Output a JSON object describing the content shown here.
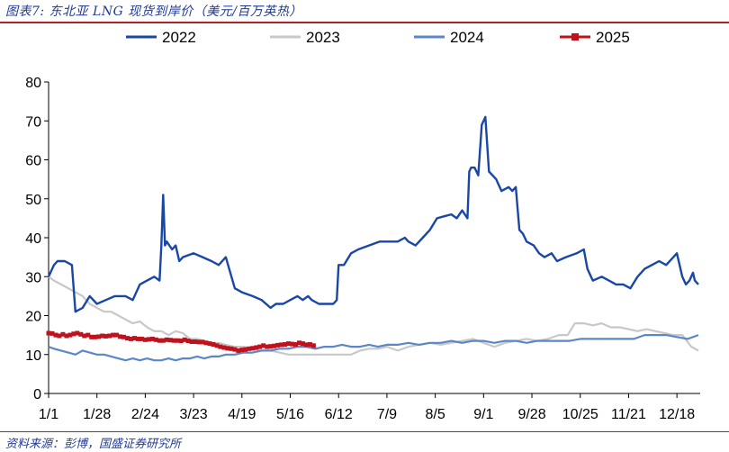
{
  "header": {
    "title": "图表7: 东北亚 LNG 现货到岸价（美元/百万英热）"
  },
  "footer": {
    "source": "资料来源：彭博，国盛证券研究所"
  },
  "colors": {
    "s2022": "#1a47a6",
    "s2023": "#c8c8c8",
    "s2024": "#5b86c8",
    "s2025": "#c0121c",
    "rule": "#b22222"
  },
  "chart_data": {
    "type": "line",
    "title": "东北亚 LNG 现货到岸价（美元/百万英热）",
    "xlabel": "",
    "ylabel": "",
    "ylim": [
      0,
      80
    ],
    "yticks": [
      0,
      10,
      20,
      30,
      40,
      50,
      60,
      70,
      80
    ],
    "xlim": [
      1,
      365
    ],
    "x_tick_labels": [
      "1/1",
      "1/28",
      "2/24",
      "3/23",
      "4/19",
      "5/16",
      "6/12",
      "7/9",
      "8/5",
      "9/1",
      "9/28",
      "10/25",
      "11/21",
      "12/18"
    ],
    "x_tick_days": [
      1,
      28,
      55,
      82,
      109,
      136,
      163,
      190,
      217,
      244,
      271,
      298,
      325,
      352
    ],
    "legend_position": "top",
    "series": [
      {
        "name": "2022",
        "x": [
          1,
          4,
          6,
          10,
          14,
          16,
          18,
          20,
          24,
          28,
          33,
          38,
          44,
          48,
          52,
          56,
          60,
          63,
          64,
          65,
          66,
          67,
          70,
          72,
          74,
          76,
          82,
          87,
          92,
          96,
          100,
          105,
          109,
          115,
          120,
          125,
          128,
          132,
          136,
          140,
          143,
          146,
          148,
          152,
          156,
          160,
          162,
          163,
          166,
          170,
          174,
          180,
          186,
          192,
          196,
          200,
          202,
          206,
          210,
          214,
          218,
          222,
          226,
          229,
          232,
          235,
          236,
          237,
          239,
          241,
          243,
          245,
          247,
          251,
          254,
          258,
          260,
          262,
          264,
          266,
          268,
          272,
          275,
          278,
          282,
          285,
          290,
          296,
          300,
          302,
          305,
          310,
          314,
          318,
          322,
          326,
          330,
          334,
          338,
          342,
          346,
          350,
          352,
          355,
          357,
          359,
          361,
          362,
          364
        ],
        "values": [
          30,
          33,
          34,
          34,
          33,
          21,
          21.5,
          22,
          25,
          23,
          24,
          25,
          25,
          24,
          28,
          29,
          30,
          29,
          38,
          51,
          38,
          39,
          37,
          38,
          34,
          35,
          36,
          35,
          34,
          33,
          35,
          27,
          26,
          25,
          24,
          22,
          23,
          23,
          24,
          25,
          24,
          25,
          24,
          23,
          23,
          23,
          24,
          33,
          33,
          36,
          37,
          38,
          39,
          39,
          39,
          40,
          39,
          38,
          40,
          42,
          45,
          45.5,
          46,
          45,
          47,
          45,
          57,
          58,
          58,
          56,
          69,
          71,
          57,
          55,
          52,
          53,
          52,
          53,
          42,
          41,
          39,
          38,
          36,
          35,
          36,
          34,
          35,
          36,
          37,
          32,
          29,
          30,
          29,
          28,
          28,
          27,
          30,
          32,
          33,
          34,
          33,
          35,
          36,
          30,
          28,
          29,
          31,
          29,
          28
        ],
        "color": "#1a47a6"
      },
      {
        "name": "2023",
        "x": [
          1,
          4,
          8,
          12,
          16,
          20,
          24,
          28,
          32,
          36,
          40,
          44,
          48,
          52,
          56,
          60,
          64,
          68,
          72,
          76,
          80,
          84,
          88,
          92,
          96,
          100,
          105,
          110,
          115,
          120,
          125,
          130,
          135,
          140,
          145,
          150,
          155,
          160,
          165,
          170,
          175,
          180,
          185,
          190,
          196,
          202,
          208,
          214,
          220,
          226,
          232,
          238,
          244,
          250,
          256,
          262,
          268,
          274,
          280,
          286,
          291,
          295,
          300,
          305,
          310,
          315,
          320,
          325,
          330,
          335,
          340,
          345,
          350,
          355,
          360,
          364
        ],
        "values": [
          30,
          29,
          28,
          27,
          26,
          25,
          23,
          22,
          21,
          21,
          20,
          19,
          18,
          18.5,
          17,
          16,
          16,
          15,
          16,
          15.5,
          14,
          14,
          13.5,
          13,
          13,
          12.5,
          12,
          12,
          11.5,
          11,
          11,
          10.5,
          10,
          10,
          10,
          10,
          10,
          10,
          10,
          10,
          11,
          11.5,
          11.5,
          12,
          11,
          12,
          12.5,
          13,
          12.5,
          13,
          13.5,
          14,
          13,
          12,
          13,
          13.5,
          14,
          13.5,
          14,
          15,
          15,
          18,
          18,
          17.5,
          18,
          17,
          17,
          16.5,
          16,
          16.5,
          16,
          15.5,
          15,
          15,
          12,
          11
        ],
        "color": "#c8c8c8"
      },
      {
        "name": "2024",
        "x": [
          1,
          4,
          8,
          12,
          16,
          20,
          24,
          28,
          32,
          36,
          40,
          44,
          48,
          52,
          56,
          60,
          64,
          68,
          72,
          76,
          80,
          84,
          88,
          92,
          96,
          100,
          105,
          110,
          115,
          120,
          125,
          130,
          135,
          140,
          145,
          150,
          155,
          160,
          165,
          170,
          175,
          180,
          185,
          190,
          196,
          202,
          208,
          214,
          220,
          226,
          232,
          238,
          244,
          250,
          256,
          262,
          268,
          274,
          280,
          286,
          292,
          298,
          304,
          310,
          316,
          322,
          328,
          334,
          340,
          346,
          352,
          358,
          364
        ],
        "values": [
          12,
          11.5,
          11,
          10.5,
          10,
          11,
          10.5,
          10,
          10,
          9.5,
          9,
          8.5,
          9,
          8.5,
          9,
          8.5,
          8.5,
          9,
          8.5,
          9,
          9,
          9.5,
          9,
          9.5,
          9.5,
          10,
          10,
          10.5,
          10.5,
          11,
          11,
          11.5,
          11.5,
          12,
          12,
          11.5,
          12,
          12,
          12.5,
          12,
          12,
          12.5,
          12,
          12.5,
          12.5,
          13,
          12.5,
          13,
          13,
          13.5,
          13,
          13.5,
          13.5,
          13,
          13.5,
          13.5,
          13,
          13.5,
          13.5,
          13.5,
          13.5,
          14,
          14,
          14,
          14,
          14,
          14,
          15,
          15,
          15,
          14.5,
          14,
          15
        ],
        "color": "#5b86c8"
      },
      {
        "name": "2025",
        "x": [
          1,
          3,
          5,
          7,
          9,
          11,
          13,
          15,
          17,
          19,
          21,
          23,
          25,
          27,
          29,
          31,
          33,
          35,
          37,
          39,
          41,
          43,
          45,
          47,
          49,
          51,
          53,
          55,
          57,
          59,
          61,
          63,
          65,
          67,
          69,
          71,
          73,
          75,
          77,
          79,
          81,
          83,
          85,
          87,
          89,
          91,
          93,
          95,
          97,
          99,
          101,
          103,
          105,
          107,
          109,
          111,
          113,
          115,
          117,
          119,
          121,
          123,
          125,
          127,
          129,
          131,
          133,
          135,
          137,
          139,
          141,
          143,
          145,
          147,
          149
        ],
        "values": [
          15.5,
          15.4,
          15,
          14.8,
          15.2,
          14.8,
          15,
          15.3,
          15.5,
          15.2,
          14.8,
          15,
          14.5,
          14.5,
          14.6,
          14.8,
          14.7,
          14.8,
          15,
          15,
          14.6,
          14.5,
          14.2,
          14,
          14.2,
          14,
          14,
          13.8,
          13.9,
          14,
          13.8,
          13.6,
          13.6,
          13.8,
          13.7,
          13.6,
          13.6,
          13.5,
          13.8,
          13.5,
          13.3,
          13.3,
          13.2,
          13.2,
          13,
          12.8,
          12.6,
          12.3,
          12,
          11.8,
          11.6,
          11.5,
          11.3,
          11,
          11.2,
          11.3,
          11.5,
          11.6,
          11.8,
          12,
          12.3,
          12,
          12.1,
          12.2,
          12.4,
          12.5,
          12.6,
          12.8,
          12.7,
          12.6,
          13,
          12.8,
          12.5,
          12.6,
          12.3
        ],
        "color": "#c0121c"
      }
    ]
  }
}
